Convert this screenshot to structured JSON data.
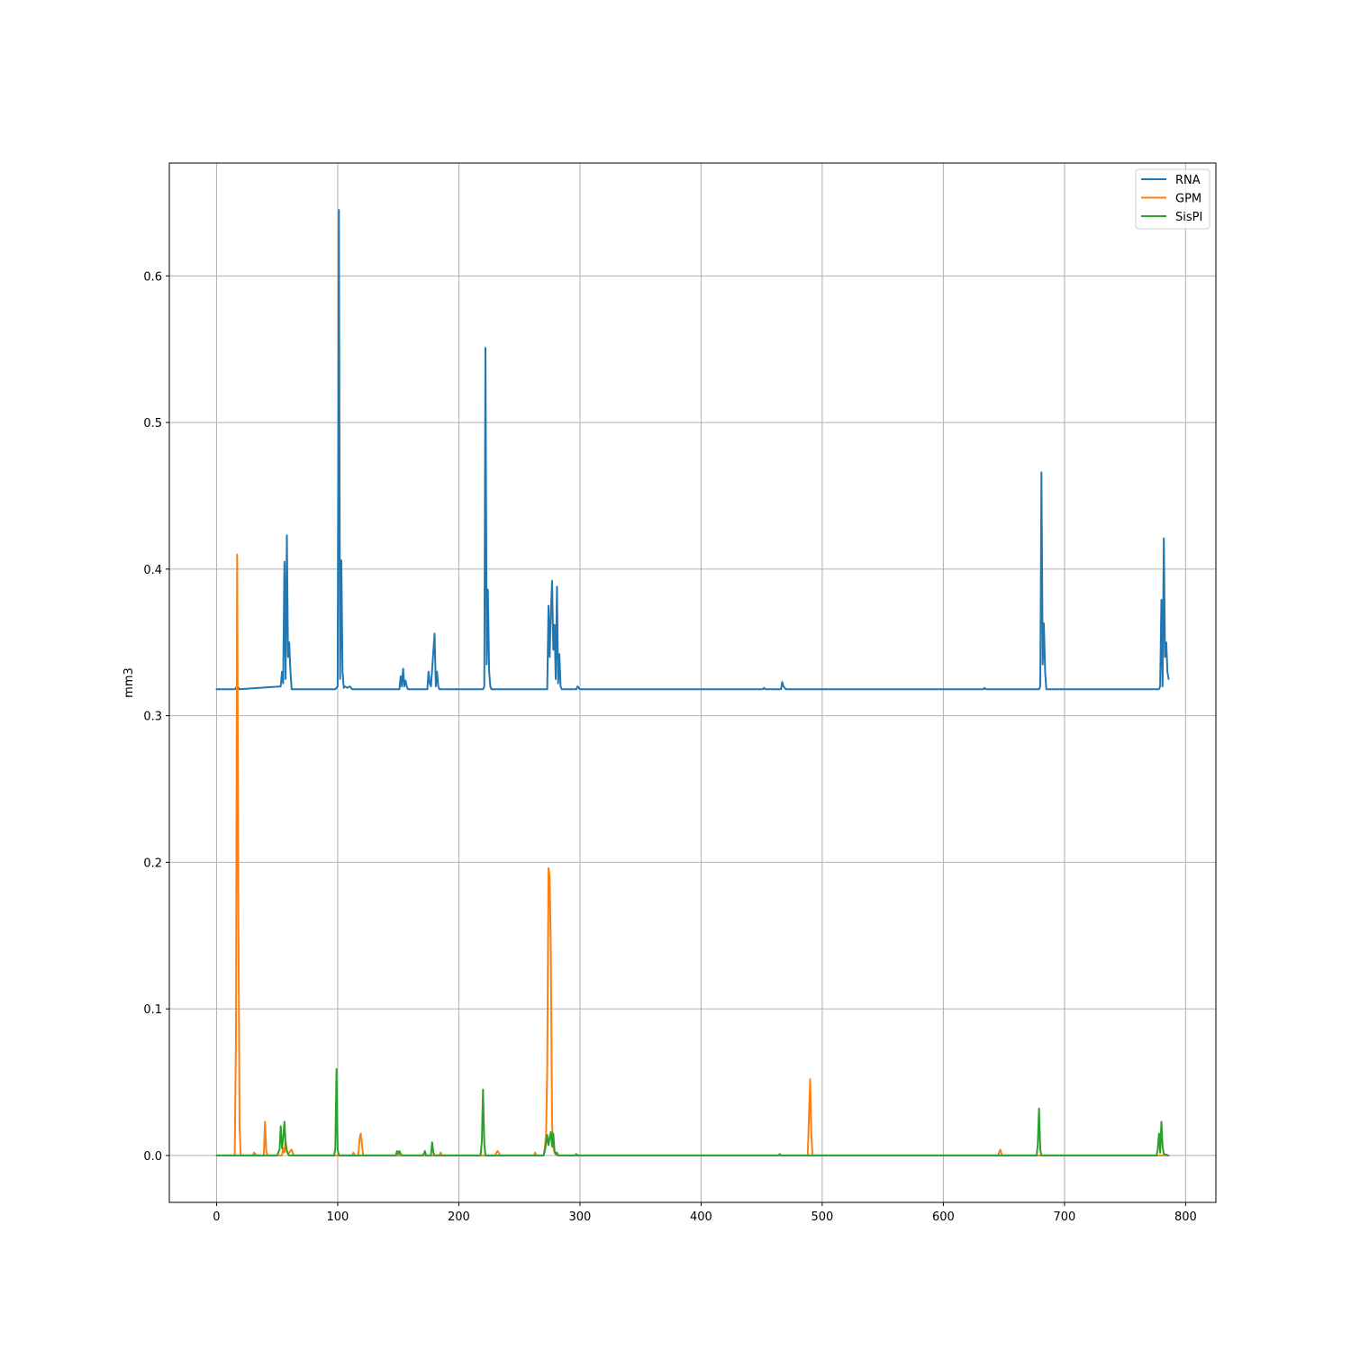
{
  "chart_data": {
    "type": "line",
    "title": "",
    "xlabel": "",
    "ylabel": "mm3",
    "xlim": [
      -39,
      825
    ],
    "ylim": [
      -0.032,
      0.677
    ],
    "xticks": [
      0,
      100,
      200,
      300,
      400,
      500,
      600,
      700,
      800
    ],
    "xtick_labels": [
      "0",
      "100",
      "200",
      "300",
      "400",
      "500",
      "600",
      "700",
      "800"
    ],
    "yticks": [
      0.0,
      0.1,
      0.2,
      0.3,
      0.4,
      0.5,
      0.6
    ],
    "ytick_labels": [
      "0.0",
      "0.1",
      "0.2",
      "0.3",
      "0.4",
      "0.5",
      "0.6"
    ],
    "grid": true,
    "legend": "top-right",
    "series": [
      {
        "name": "RNA",
        "color": "#1f77b4",
        "x": [
          0,
          15,
          16,
          17,
          18,
          19,
          53,
          54,
          55,
          56,
          57,
          58,
          59,
          60,
          61,
          62,
          63,
          98,
          99,
          100,
          101,
          102,
          103,
          104,
          105,
          106,
          108,
          110,
          112,
          114,
          151,
          152,
          153,
          154,
          155,
          156,
          157,
          158,
          174,
          175,
          176,
          177,
          180,
          181,
          182,
          183,
          184,
          185,
          220,
          221,
          222,
          223,
          224,
          225,
          226,
          227,
          273,
          274,
          275,
          276,
          277,
          278,
          279,
          280,
          281,
          282,
          283,
          284,
          285,
          287,
          297,
          298,
          300,
          451,
          452,
          453,
          466,
          467,
          468,
          470,
          633,
          634,
          635,
          679,
          680,
          681,
          682,
          683,
          684,
          685,
          686,
          778,
          779,
          780,
          781,
          782,
          783,
          784,
          785,
          786
        ],
        "y": [
          0.318,
          0.318,
          0.319,
          0.32,
          0.319,
          0.318,
          0.32,
          0.33,
          0.322,
          0.405,
          0.325,
          0.423,
          0.34,
          0.35,
          0.33,
          0.318,
          0.318,
          0.318,
          0.319,
          0.32,
          0.645,
          0.325,
          0.406,
          0.33,
          0.319,
          0.32,
          0.319,
          0.32,
          0.318,
          0.318,
          0.318,
          0.327,
          0.32,
          0.332,
          0.32,
          0.324,
          0.32,
          0.318,
          0.318,
          0.33,
          0.322,
          0.32,
          0.356,
          0.32,
          0.33,
          0.32,
          0.318,
          0.318,
          0.318,
          0.32,
          0.551,
          0.335,
          0.386,
          0.33,
          0.32,
          0.318,
          0.318,
          0.375,
          0.34,
          0.37,
          0.392,
          0.345,
          0.362,
          0.325,
          0.388,
          0.322,
          0.342,
          0.32,
          0.318,
          0.318,
          0.318,
          0.32,
          0.318,
          0.318,
          0.319,
          0.318,
          0.318,
          0.323,
          0.32,
          0.318,
          0.318,
          0.319,
          0.318,
          0.318,
          0.32,
          0.466,
          0.335,
          0.363,
          0.33,
          0.318,
          0.318,
          0.318,
          0.32,
          0.379,
          0.32,
          0.421,
          0.34,
          0.35,
          0.33,
          0.325
        ]
      },
      {
        "name": "GPM",
        "color": "#ff7f0e",
        "x": [
          0,
          15,
          16,
          17,
          18,
          19,
          20,
          30,
          31,
          32,
          33,
          39,
          40,
          41,
          42,
          45,
          54,
          55,
          56,
          57,
          58,
          59,
          62,
          63,
          64,
          112,
          113,
          114,
          117,
          118,
          119,
          120,
          121,
          184,
          185,
          186,
          230,
          231,
          232,
          233,
          234,
          262,
          263,
          264,
          270,
          271,
          272,
          273,
          274,
          275,
          276,
          277,
          278,
          279,
          280,
          281,
          285,
          488,
          489,
          490,
          491,
          492,
          645,
          646,
          647,
          648,
          649,
          786
        ],
        "y": [
          0.0,
          0.0,
          0.08,
          0.41,
          0.16,
          0.02,
          0.0,
          0.0,
          0.002,
          0.001,
          0.0,
          0.0,
          0.023,
          0.003,
          0.0,
          0.0,
          0.0,
          0.005,
          0.002,
          0.01,
          0.003,
          0.001,
          0.004,
          0.001,
          0.0,
          0.0,
          0.002,
          0.0,
          0.0,
          0.011,
          0.015,
          0.008,
          0.0,
          0.0,
          0.002,
          0.0,
          0.0,
          0.002,
          0.003,
          0.002,
          0.0,
          0.0,
          0.002,
          0.0,
          0.0,
          0.005,
          0.015,
          0.06,
          0.196,
          0.19,
          0.14,
          0.02,
          0.006,
          0.002,
          0.001,
          0.0,
          0.0,
          0.0,
          0.025,
          0.052,
          0.015,
          0.0,
          0.0,
          0.002,
          0.004,
          0.001,
          0.0,
          0.0
        ]
      },
      {
        "name": "SisPI",
        "color": "#2ca02c",
        "x": [
          0,
          50,
          51,
          52,
          53,
          54,
          55,
          56,
          57,
          58,
          59,
          60,
          97,
          98,
          99,
          100,
          101,
          148,
          149,
          150,
          151,
          152,
          153,
          170,
          171,
          172,
          173,
          177,
          178,
          179,
          180,
          218,
          219,
          220,
          221,
          222,
          270,
          271,
          272,
          273,
          274,
          275,
          276,
          277,
          278,
          279,
          280,
          281,
          282,
          296,
          297,
          298,
          464,
          465,
          466,
          677,
          678,
          679,
          680,
          681,
          776,
          777,
          778,
          779,
          780,
          781,
          782,
          786
        ],
        "y": [
          0.0,
          0.0,
          0.002,
          0.004,
          0.02,
          0.005,
          0.012,
          0.023,
          0.008,
          0.003,
          0.001,
          0.0,
          0.0,
          0.005,
          0.059,
          0.004,
          0.0,
          0.0,
          0.003,
          0.001,
          0.003,
          0.001,
          0.0,
          0.0,
          0.001,
          0.003,
          0.0,
          0.0,
          0.009,
          0.002,
          0.0,
          0.0,
          0.01,
          0.045,
          0.008,
          0.0,
          0.0,
          0.003,
          0.008,
          0.014,
          0.007,
          0.012,
          0.016,
          0.006,
          0.015,
          0.003,
          0.001,
          0.002,
          0.0,
          0.0,
          0.001,
          0.0,
          0.0,
          0.001,
          0.0,
          0.0,
          0.008,
          0.032,
          0.004,
          0.0,
          0.0,
          0.004,
          0.015,
          0.002,
          0.023,
          0.006,
          0.001,
          0.0
        ]
      }
    ]
  }
}
